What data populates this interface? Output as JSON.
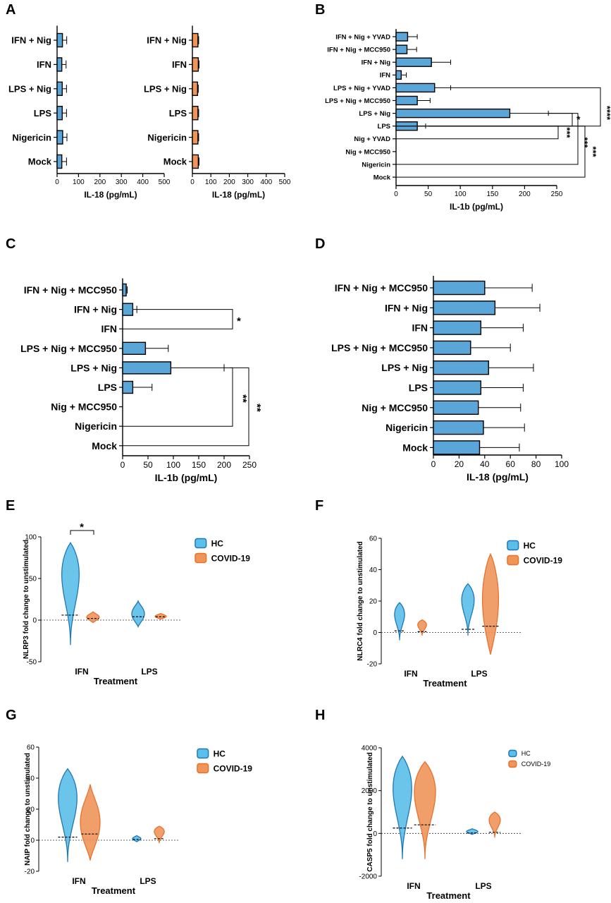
{
  "colors": {
    "blue_fill": "#5aa6d9",
    "blue_violin": "#5bbfe9",
    "blue_line": "#1f77b4",
    "orange_fill": "#f0955a",
    "orange_line": "#e9712c",
    "axis": "#000000"
  },
  "chart_data": [
    {
      "panel": "A",
      "type": "bar",
      "orientation": "horizontal",
      "categories": [
        "IFN + Nig",
        "IFN",
        "LPS + Nig",
        "LPS",
        "Nigericin",
        "Mock"
      ],
      "series": [
        {
          "values": [
            25,
            22,
            24,
            24,
            26,
            22
          ],
          "errors": [
            20,
            20,
            20,
            20,
            20,
            22
          ]
        }
      ],
      "xlabel": "IL-18 (pg/mL)",
      "xlim": [
        0,
        500
      ],
      "xticks": [
        0,
        100,
        200,
        300,
        400,
        500
      ]
    },
    {
      "panel": "A",
      "type": "bar",
      "orientation": "horizontal",
      "categories": [
        "IFN + Nig",
        "IFN",
        "LPS + Nig",
        "LPS",
        "Nigericin",
        "Mock"
      ],
      "series": [
        {
          "values": [
            30,
            32,
            28,
            30,
            30,
            32
          ],
          "errors": [
            4,
            4,
            4,
            4,
            4,
            4
          ]
        }
      ],
      "xlabel": "IL-18 (pg/mL)",
      "xlim": [
        0,
        500
      ],
      "xticks": [
        0,
        100,
        200,
        300,
        400,
        500
      ]
    },
    {
      "panel": "B",
      "type": "bar",
      "orientation": "horizontal",
      "categories": [
        "IFN + Nig + YVAD",
        "IFN + Nig + MCC950",
        "IFN + Nig",
        "IFN",
        "LPS + Nig + YVAD",
        "LPS + Nig + MCC950",
        "LPS + Nig",
        "LPS",
        "Nig + YVAD",
        "Nig + MCC950",
        "Nigericin",
        "Mock"
      ],
      "series": [
        {
          "values": [
            18,
            17,
            55,
            8,
            60,
            33,
            177,
            33,
            0,
            0,
            0,
            0
          ],
          "errors": [
            15,
            15,
            30,
            8,
            25,
            20,
            60,
            13,
            0,
            0,
            0,
            0
          ]
        }
      ],
      "xlabel": "IL-1b (pg/mL)",
      "xlim": [
        0,
        250
      ],
      "xticks": [
        0,
        50,
        100,
        150,
        200,
        250
      ],
      "annotations": [
        "*",
        "***",
        "***",
        "***",
        "****"
      ]
    },
    {
      "panel": "C",
      "type": "bar",
      "orientation": "horizontal",
      "categories": [
        "IFN + Nig + MCC950",
        "IFN + Nig",
        "IFN",
        "LPS + Nig + MCC950",
        "LPS + Nig",
        "LPS",
        "Nig + MCC950",
        "Nigericin",
        "Mock"
      ],
      "series": [
        {
          "values": [
            7,
            20,
            0,
            45,
            95,
            20,
            0,
            0,
            0
          ],
          "errors": [
            2,
            8,
            0,
            45,
            105,
            38,
            0,
            0,
            0
          ]
        }
      ],
      "xlabel": "IL-1b (pg/mL)",
      "xlim": [
        0,
        250
      ],
      "xticks": [
        0,
        50,
        100,
        150,
        200,
        250
      ],
      "annotations": [
        "*",
        "**",
        "**"
      ]
    },
    {
      "panel": "D",
      "type": "bar",
      "orientation": "horizontal",
      "categories": [
        "IFN + Nig + MCC950",
        "IFN + Nig",
        "IFN",
        "LPS + Nig + MCC950",
        "LPS + Nig",
        "LPS",
        "Nig + MCC950",
        "Nigericin",
        "Mock"
      ],
      "series": [
        {
          "values": [
            40,
            48,
            37,
            29,
            43,
            37,
            35,
            39,
            36
          ],
          "errors": [
            37,
            35,
            33,
            31,
            35,
            33,
            33,
            32,
            31
          ]
        }
      ],
      "xlabel": "IL-18 (pg/mL)",
      "xlim": [
        0,
        100
      ],
      "xticks": [
        0,
        20,
        40,
        60,
        80,
        100
      ]
    },
    {
      "panel": "E",
      "type": "violin",
      "categories": [
        "IFN",
        "LPS"
      ],
      "series": [
        {
          "name": "HC",
          "min": [
            -30,
            -8
          ],
          "max": [
            93,
            23
          ],
          "median": [
            6,
            4
          ]
        },
        {
          "name": "COVID-19",
          "min": [
            -3,
            1
          ],
          "max": [
            10,
            8
          ],
          "median": [
            2,
            4
          ]
        }
      ],
      "xlabel": "Treatment",
      "ylabel": "NLRP3 fold change to unstimulated",
      "ylim": [
        -50,
        100
      ],
      "yticks": [
        -50,
        0,
        50,
        100
      ],
      "annotations": [
        "*"
      ]
    },
    {
      "panel": "F",
      "type": "violin",
      "categories": [
        "IFN",
        "LPS"
      ],
      "series": [
        {
          "name": "HC",
          "min": [
            -5,
            -2
          ],
          "max": [
            19,
            31
          ],
          "median": [
            1,
            2
          ]
        },
        {
          "name": "COVID-19",
          "min": [
            -2,
            -14
          ],
          "max": [
            8,
            50
          ],
          "median": [
            0.5,
            4
          ]
        }
      ],
      "xlabel": "Treatment",
      "ylabel": "NLRC4 fold change to unstimulated",
      "ylim": [
        -20,
        60
      ],
      "yticks": [
        -20,
        0,
        20,
        40,
        60
      ]
    },
    {
      "panel": "G",
      "type": "violin",
      "categories": [
        "IFN",
        "LPS"
      ],
      "series": [
        {
          "name": "HC",
          "min": [
            -14,
            -1
          ],
          "max": [
            46,
            3
          ],
          "median": [
            2,
            0.5
          ]
        },
        {
          "name": "COVID-19",
          "min": [
            -13,
            -2
          ],
          "max": [
            36,
            9
          ],
          "median": [
            4,
            1
          ]
        }
      ],
      "xlabel": "Treatment",
      "ylabel": "NAIP fold change to unstimulated",
      "ylim": [
        -20,
        60
      ],
      "yticks": [
        -20,
        0,
        20,
        40,
        60
      ]
    },
    {
      "panel": "H",
      "type": "violin",
      "categories": [
        "IFN",
        "LPS"
      ],
      "series": [
        {
          "name": "HC",
          "min": [
            -1200,
            -50
          ],
          "max": [
            3600,
            220
          ],
          "median": [
            250,
            20
          ]
        },
        {
          "name": "COVID-19",
          "min": [
            -1200,
            -200
          ],
          "max": [
            3350,
            1000
          ],
          "median": [
            400,
            50
          ]
        }
      ],
      "xlabel": "Treatment",
      "ylabel": "CASP5 fold change to unstimulated",
      "ylim": [
        -2000,
        4000
      ],
      "yticks": [
        -2000,
        0,
        2000,
        4000
      ]
    }
  ]
}
